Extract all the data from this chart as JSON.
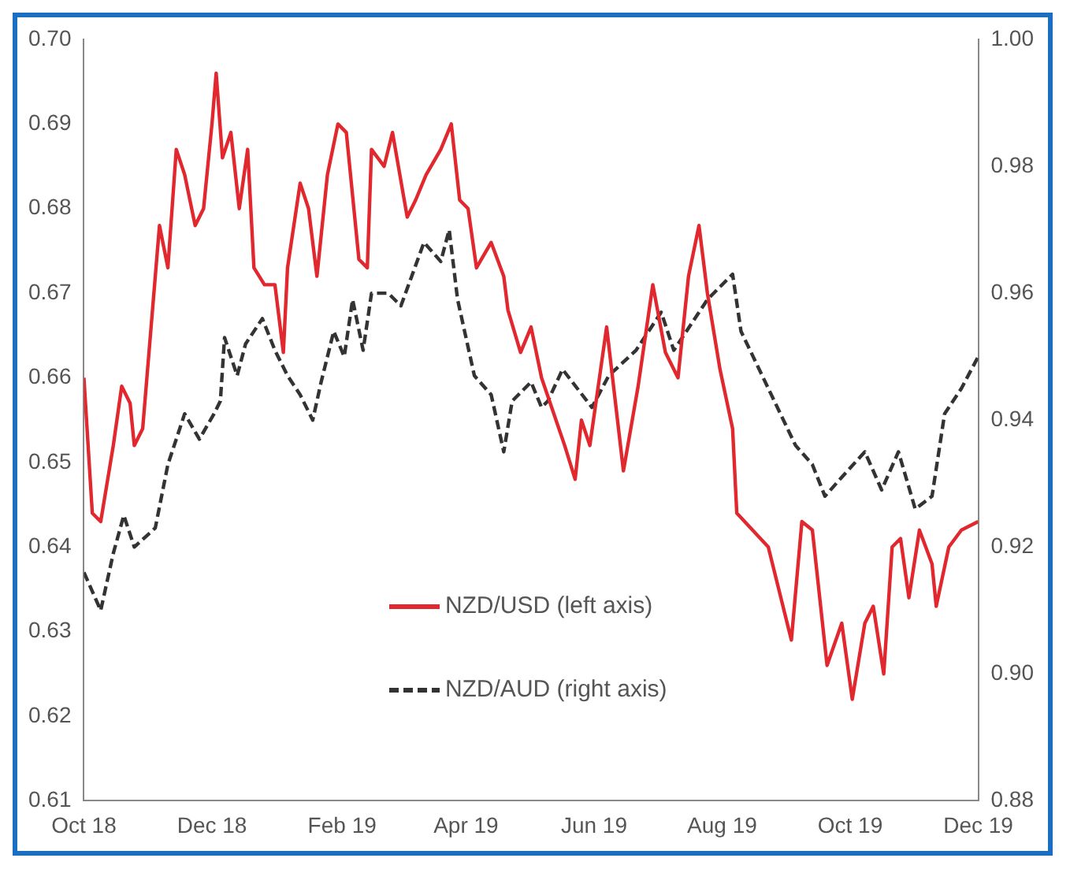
{
  "chart_data": {
    "type": "line",
    "series": [
      {
        "name": "NZD/USD (left axis)",
        "color": "#e0282e",
        "line_style": "solid",
        "axis": "y",
        "x": [
          "2018-10-01",
          "2018-10-05",
          "2018-10-09",
          "2018-10-15",
          "2018-10-19",
          "2018-10-23",
          "2018-10-25",
          "2018-10-29",
          "2018-11-02",
          "2018-11-06",
          "2018-11-10",
          "2018-11-14",
          "2018-11-18",
          "2018-11-23",
          "2018-11-27",
          "2018-12-01",
          "2018-12-03",
          "2018-12-06",
          "2018-12-10",
          "2018-12-14",
          "2018-12-18",
          "2018-12-21",
          "2018-12-26",
          "2018-12-31",
          "2019-01-04",
          "2019-01-06",
          "2019-01-12",
          "2019-01-16",
          "2019-01-20",
          "2019-01-25",
          "2019-01-30",
          "2019-02-03",
          "2019-02-09",
          "2019-02-13",
          "2019-02-15",
          "2019-02-21",
          "2019-02-25",
          "2019-03-04",
          "2019-03-08",
          "2019-03-13",
          "2019-03-20",
          "2019-03-25",
          "2019-03-29",
          "2019-04-02",
          "2019-04-06",
          "2019-04-13",
          "2019-04-19",
          "2019-04-21",
          "2019-04-27",
          "2019-05-02",
          "2019-05-07",
          "2019-05-18",
          "2019-05-23",
          "2019-05-26",
          "2019-05-30",
          "2019-06-07",
          "2019-06-15",
          "2019-06-22",
          "2019-06-29",
          "2019-07-05",
          "2019-07-11",
          "2019-07-16",
          "2019-07-21",
          "2019-07-25",
          "2019-07-31",
          "2019-08-06",
          "2019-08-08",
          "2019-08-23",
          "2019-09-03",
          "2019-09-08",
          "2019-09-13",
          "2019-09-20",
          "2019-09-27",
          "2019-10-02",
          "2019-10-08",
          "2019-10-12",
          "2019-10-17",
          "2019-10-21",
          "2019-10-25",
          "2019-10-29",
          "2019-11-03",
          "2019-11-09",
          "2019-11-11",
          "2019-11-17",
          "2019-11-23",
          "2019-12-01"
        ],
        "values": [
          0.66,
          0.644,
          0.643,
          0.652,
          0.659,
          0.657,
          0.652,
          0.654,
          0.666,
          0.678,
          0.673,
          0.687,
          0.684,
          0.678,
          0.68,
          0.69,
          0.696,
          0.686,
          0.689,
          0.68,
          0.687,
          0.673,
          0.671,
          0.671,
          0.663,
          0.673,
          0.683,
          0.68,
          0.672,
          0.684,
          0.69,
          0.689,
          0.674,
          0.673,
          0.687,
          0.685,
          0.689,
          0.679,
          0.681,
          0.684,
          0.687,
          0.69,
          0.681,
          0.68,
          0.673,
          0.676,
          0.672,
          0.668,
          0.663,
          0.666,
          0.66,
          0.652,
          0.648,
          0.655,
          0.652,
          0.666,
          0.649,
          0.659,
          0.671,
          0.663,
          0.66,
          0.672,
          0.678,
          0.67,
          0.661,
          0.654,
          0.644,
          0.64,
          0.629,
          0.643,
          0.642,
          0.626,
          0.631,
          0.622,
          0.631,
          0.633,
          0.625,
          0.64,
          0.641,
          0.634,
          0.642,
          0.638,
          0.633,
          0.64,
          0.642,
          0.643
        ]
      },
      {
        "name": "NZD/AUD (right axis)",
        "color": "#333333",
        "line_style": "dashed",
        "axis": "y2",
        "x": [
          "2018-10-01",
          "2018-10-09",
          "2018-10-15",
          "2018-10-20",
          "2018-10-25",
          "2018-11-04",
          "2018-11-10",
          "2018-11-18",
          "2018-11-25",
          "2018-12-02",
          "2018-12-05",
          "2018-12-07",
          "2018-12-13",
          "2018-12-17",
          "2018-12-25",
          "2018-12-31",
          "2019-01-06",
          "2019-01-12",
          "2019-01-18",
          "2019-01-22",
          "2019-01-28",
          "2019-02-02",
          "2019-02-06",
          "2019-02-11",
          "2019-02-15",
          "2019-02-23",
          "2019-03-01",
          "2019-03-12",
          "2019-03-20",
          "2019-03-24",
          "2019-03-28",
          "2019-04-05",
          "2019-04-13",
          "2019-04-19",
          "2019-04-23",
          "2019-05-02",
          "2019-05-07",
          "2019-05-10",
          "2019-05-17",
          "2019-05-31",
          "2019-06-08",
          "2019-06-21",
          "2019-07-03",
          "2019-07-09",
          "2019-07-25",
          "2019-08-06",
          "2019-08-10",
          "2019-08-23",
          "2019-09-05",
          "2019-09-13",
          "2019-09-19",
          "2019-09-27",
          "2019-10-08",
          "2019-10-16",
          "2019-10-24",
          "2019-11-01",
          "2019-11-09",
          "2019-11-15",
          "2019-11-23",
          "2019-12-01"
        ],
        "values": [
          0.916,
          0.91,
          0.919,
          0.925,
          0.92,
          0.923,
          0.933,
          0.941,
          0.937,
          0.941,
          0.943,
          0.953,
          0.947,
          0.952,
          0.956,
          0.951,
          0.947,
          0.944,
          0.94,
          0.946,
          0.954,
          0.95,
          0.959,
          0.951,
          0.96,
          0.96,
          0.958,
          0.968,
          0.965,
          0.97,
          0.959,
          0.947,
          0.944,
          0.935,
          0.943,
          0.946,
          0.942,
          0.943,
          0.948,
          0.942,
          0.947,
          0.951,
          0.957,
          0.951,
          0.959,
          0.963,
          0.954,
          0.945,
          0.936,
          0.933,
          0.928,
          0.931,
          0.935,
          0.929,
          0.935,
          0.926,
          0.928,
          0.941,
          0.945,
          0.95
        ]
      }
    ],
    "xlim": [
      "2018-10-01",
      "2019-12-01"
    ],
    "xticks": [
      {
        "value": "2018-10-01",
        "label": "Oct 18"
      },
      {
        "value": "2018-12-01",
        "label": "Dec 18"
      },
      {
        "value": "2019-02-01",
        "label": "Feb 19"
      },
      {
        "value": "2019-04-01",
        "label": "Apr 19"
      },
      {
        "value": "2019-06-01",
        "label": "Jun 19"
      },
      {
        "value": "2019-08-01",
        "label": "Aug 19"
      },
      {
        "value": "2019-10-01",
        "label": "Oct 19"
      },
      {
        "value": "2019-12-01",
        "label": "Dec 19"
      }
    ],
    "ylim": [
      0.61,
      0.7
    ],
    "yticks": [
      0.61,
      0.62,
      0.63,
      0.64,
      0.65,
      0.66,
      0.67,
      0.68,
      0.69,
      {
        "value": 0.7,
        "label": "0.70"
      }
    ],
    "y2lim": [
      0.88,
      1.0
    ],
    "y2ticks": [
      0.88,
      {
        "value": 0.9,
        "label": "0.90"
      },
      0.92,
      0.94,
      0.96,
      0.98,
      {
        "value": 1.0,
        "label": "1.00"
      }
    ],
    "grid": false,
    "legend": "bottom",
    "marker": "none"
  }
}
